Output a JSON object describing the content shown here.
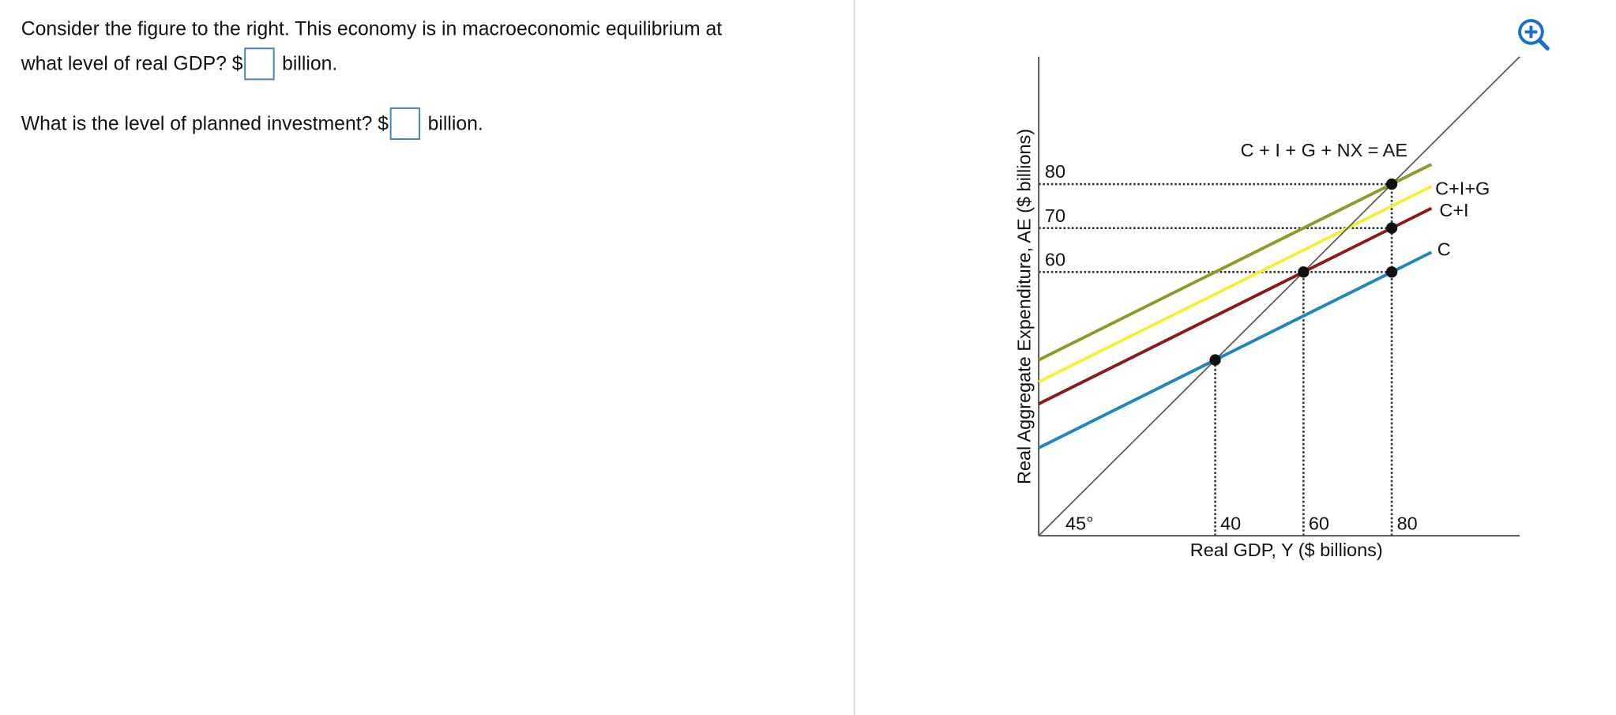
{
  "question": {
    "line1": "Consider the figure to the right. This economy is in macroeconomic equilibrium at",
    "q1_prefix": "what level of real GDP? $",
    "q1_suffix": "billion.",
    "q2_prefix": "What is the level of planned investment? $",
    "q2_suffix": "billion."
  },
  "chart_data": {
    "type": "line",
    "x_label": "Real GDP, Y ($ billions)",
    "y_label": "Real Aggregate Expenditure, AE ($ billions)",
    "angle_label": "45°",
    "xlim": [
      0,
      109
    ],
    "ylim": [
      0,
      109
    ],
    "xticks": [
      40,
      60,
      80
    ],
    "yticks": [
      60,
      70,
      80
    ],
    "series": [
      {
        "name": "C",
        "color": "#1f87c0",
        "x": [
          0,
          89
        ],
        "values": [
          20,
          64.5
        ]
      },
      {
        "name": "C+I",
        "color": "#8b1a1a",
        "x": [
          0,
          89
        ],
        "values": [
          30,
          74.5
        ]
      },
      {
        "name": "C+I+G",
        "color": "#f5ef3c",
        "x": [
          0,
          89
        ],
        "values": [
          35,
          79.5
        ]
      },
      {
        "name": "C + I + G + NX = AE",
        "color": "#8c9a2a",
        "x": [
          0,
          89
        ],
        "values": [
          40,
          84.5
        ]
      },
      {
        "name": "45°",
        "color": "#555555",
        "x": [
          0,
          109
        ],
        "values": [
          0,
          109
        ]
      }
    ],
    "points": {
      "x": [
        40,
        60,
        80,
        80,
        80
      ],
      "values": [
        40,
        60,
        60,
        70,
        80
      ]
    }
  }
}
